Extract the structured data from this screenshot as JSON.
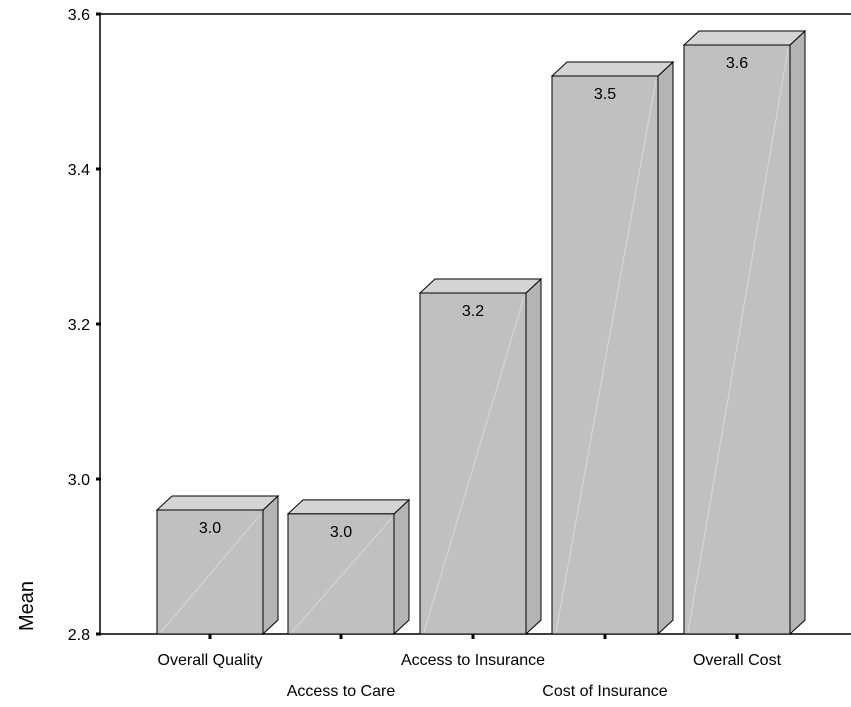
{
  "chart_data": {
    "type": "bar",
    "categories": [
      "Overall Quality",
      "Access to Care",
      "Access to Insurance",
      "Cost of Insurance",
      "Overall Cost"
    ],
    "values": [
      2.96,
      2.955,
      3.24,
      3.52,
      3.56
    ],
    "data_labels": [
      "3.0",
      "3.0",
      "3.2",
      "3.5",
      "3.6"
    ],
    "title": "",
    "xlabel": "",
    "ylabel": "Mean",
    "ylim": [
      2.8,
      3.6
    ],
    "yticks": [
      2.8,
      3.0,
      3.2,
      3.4,
      3.6
    ],
    "ytick_labels": [
      "2.8",
      "3.0",
      "3.2",
      "3.4",
      "3.6"
    ],
    "grid": false,
    "style": "3d-bar",
    "colors": {
      "bar_front": "#c0c0c0",
      "bar_top": "#d4d4d4",
      "bar_side": "#b4b4b4",
      "outline": "#000000"
    }
  }
}
